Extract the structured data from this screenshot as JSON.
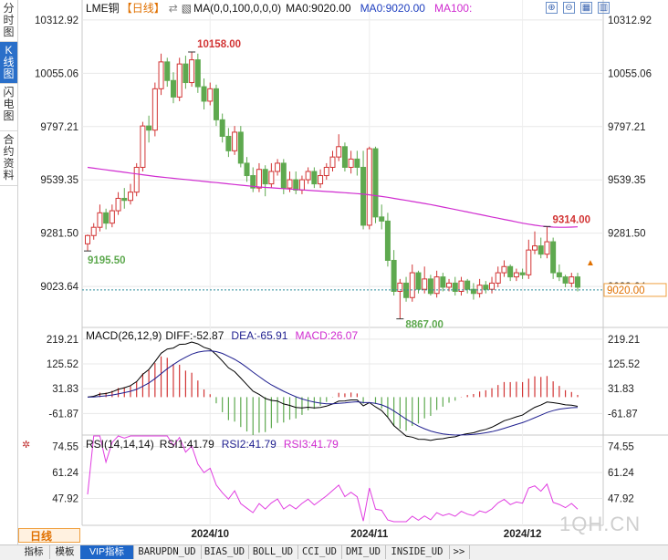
{
  "side_tabs": [
    "分时图",
    "K线图",
    "闪电图",
    "合约资料"
  ],
  "side_tab_active": 1,
  "header": {
    "symbol": "LME铜",
    "period": "【日线】",
    "ma_indicator": "MA(0,0,100,0,0,0)",
    "ma_label": "MA0:9020.00",
    "ma0_label": "MA0:9020.00",
    "ma100_label": "MA100:"
  },
  "macd_header": {
    "name": "MACD(26,12,9)",
    "diff": "DIFF:-52.87",
    "dea": "DEA:-65.91",
    "macd": "MACD:26.07"
  },
  "rsi_header": {
    "name": "RSI(14,14,14)",
    "rsi1": "RSI1:41.79",
    "rsi2": "RSI2:41.79",
    "rsi3": "RSI3:41.79"
  },
  "colors": {
    "up": "#d23434",
    "down": "#5ea94f",
    "ma": "#d02cd0",
    "diff": "#000000",
    "dea": "#1f1f8f",
    "rsi": "#e03ce0",
    "price_line": "#2a8a9a"
  },
  "period_label": "日线",
  "bottom_tabs": [
    "指标",
    "模板",
    "VIP指标",
    "BARUPDN_UD",
    "BIAS_UD",
    "BOLL_UD",
    "CCI_UD",
    "DMI_UD",
    "INSIDE_UD",
    ">>"
  ],
  "bottom_tab_active": 2,
  "watermark": "1QH.CN",
  "chart_data": {
    "type": "candlestick",
    "main": {
      "y_ticks": [
        "10312.92",
        "10055.06",
        "9797.21",
        "9539.35",
        "9281.50",
        "9023.64"
      ],
      "ylim": [
        8830,
        10330
      ],
      "current_price": "9020.00",
      "high_label": "10158.00",
      "low_label": "8867.00",
      "left_label": "9195.50",
      "recent_high_label": "9314.00"
    },
    "x_labels": [
      "2024/10",
      "2024/11",
      "2024/12"
    ],
    "candles": [
      [
        9230,
        9270,
        9195.5,
        9275
      ],
      [
        9270,
        9310,
        9250,
        9330
      ],
      [
        9310,
        9380,
        9290,
        9420
      ],
      [
        9380,
        9330,
        9300,
        9400
      ],
      [
        9330,
        9390,
        9310,
        9420
      ],
      [
        9390,
        9450,
        9370,
        9480
      ],
      [
        9450,
        9440,
        9400,
        9500
      ],
      [
        9440,
        9480,
        9420,
        9520
      ],
      [
        9480,
        9600,
        9460,
        9620
      ],
      [
        9600,
        9800,
        9580,
        9820
      ],
      [
        9800,
        9780,
        9720,
        9850
      ],
      [
        9780,
        9980,
        9750,
        10010
      ],
      [
        9980,
        10110,
        9950,
        10150
      ],
      [
        10110,
        10020,
        9990,
        10130
      ],
      [
        10020,
        9940,
        9910,
        10060
      ],
      [
        9940,
        10100,
        9920,
        10130
      ],
      [
        10100,
        10010,
        9980,
        10140
      ],
      [
        10010,
        10120,
        9990,
        10158
      ],
      [
        10120,
        9990,
        9960,
        10150
      ],
      [
        9990,
        9920,
        9880,
        10030
      ],
      [
        9920,
        9980,
        9900,
        10010
      ],
      [
        9980,
        9830,
        9800,
        10000
      ],
      [
        9830,
        9750,
        9720,
        9860
      ],
      [
        9750,
        9680,
        9650,
        9790
      ],
      [
        9680,
        9770,
        9660,
        9800
      ],
      [
        9770,
        9620,
        9600,
        9800
      ],
      [
        9620,
        9560,
        9530,
        9650
      ],
      [
        9560,
        9500,
        9480,
        9600
      ],
      [
        9500,
        9590,
        9480,
        9620
      ],
      [
        9590,
        9520,
        9460,
        9610
      ],
      [
        9520,
        9580,
        9500,
        9620
      ],
      [
        9580,
        9620,
        9560,
        9640
      ],
      [
        9620,
        9500,
        9470,
        9640
      ],
      [
        9500,
        9540,
        9480,
        9580
      ],
      [
        9540,
        9490,
        9470,
        9580
      ],
      [
        9490,
        9540,
        9470,
        9560
      ],
      [
        9540,
        9580,
        9520,
        9600
      ],
      [
        9580,
        9520,
        9500,
        9600
      ],
      [
        9520,
        9560,
        9500,
        9590
      ],
      [
        9560,
        9600,
        9540,
        9620
      ],
      [
        9600,
        9650,
        9580,
        9680
      ],
      [
        9650,
        9700,
        9630,
        9760
      ],
      [
        9700,
        9600,
        9580,
        9720
      ],
      [
        9600,
        9640,
        9570,
        9680
      ],
      [
        9640,
        9600,
        9560,
        9680
      ],
      [
        9600,
        9320,
        9300,
        9680
      ],
      [
        9320,
        9690,
        9300,
        9700
      ],
      [
        9690,
        9360,
        9330,
        9700
      ],
      [
        9360,
        9340,
        9300,
        9420
      ],
      [
        9340,
        9150,
        9120,
        9380
      ],
      [
        9150,
        9000,
        8980,
        9200
      ],
      [
        9000,
        9040,
        8867,
        9060
      ],
      [
        9040,
        8970,
        8950,
        9070
      ],
      [
        8970,
        9090,
        8950,
        9130
      ],
      [
        9090,
        9010,
        8990,
        9100
      ],
      [
        9010,
        9060,
        8990,
        9120
      ],
      [
        9060,
        8990,
        8980,
        9080
      ],
      [
        8990,
        9070,
        8970,
        9100
      ],
      [
        9070,
        9020,
        9000,
        9090
      ],
      [
        9020,
        9040,
        9000,
        9060
      ],
      [
        9040,
        9000,
        8980,
        9070
      ],
      [
        9000,
        9050,
        8980,
        9070
      ],
      [
        9050,
        9010,
        8990,
        9060
      ],
      [
        9010,
        8990,
        8960,
        9040
      ],
      [
        8990,
        9030,
        8970,
        9060
      ],
      [
        9030,
        9010,
        8990,
        9050
      ],
      [
        9010,
        9040,
        8990,
        9070
      ],
      [
        9040,
        9090,
        9020,
        9120
      ],
      [
        9090,
        9120,
        9070,
        9150
      ],
      [
        9120,
        9070,
        9050,
        9130
      ],
      [
        9070,
        9090,
        9050,
        9110
      ],
      [
        9090,
        9080,
        9060,
        9110
      ],
      [
        9080,
        9200,
        9060,
        9250
      ],
      [
        9200,
        9220,
        9180,
        9290
      ],
      [
        9220,
        9180,
        9160,
        9260
      ],
      [
        9180,
        9240,
        9160,
        9314
      ],
      [
        9240,
        9090,
        9060,
        9260
      ],
      [
        9090,
        9070,
        9050,
        9130
      ],
      [
        9070,
        9040,
        9020,
        9080
      ],
      [
        9040,
        9070,
        9020,
        9090
      ],
      [
        9070,
        9020,
        9000,
        9090
      ]
    ],
    "ma100_series": [
      9600,
      9596,
      9592,
      9588,
      9584,
      9580,
      9576,
      9572,
      9568,
      9564,
      9560,
      9556,
      9553,
      9550,
      9547,
      9544,
      9541,
      9538,
      9535,
      9532,
      9529,
      9526,
      9523,
      9520,
      9517,
      9514,
      9511,
      9508,
      9505,
      9503,
      9501,
      9499,
      9497,
      9495,
      9493,
      9491,
      9489,
      9487,
      9485,
      9483,
      9481,
      9479,
      9477,
      9475,
      9473,
      9470,
      9467,
      9463,
      9459,
      9455,
      9450,
      9445,
      9440,
      9435,
      9430,
      9425,
      9420,
      9414,
      9408,
      9402,
      9396,
      9390,
      9384,
      9378,
      9372,
      9366,
      9360,
      9354,
      9348,
      9342,
      9336,
      9330,
      9325,
      9320,
      9316,
      9313,
      9311,
      9310,
      9310,
      9311,
      9312
    ],
    "macd": {
      "y_ticks": [
        "219.21",
        "125.52",
        "31.83",
        "-61.87"
      ],
      "ylim": [
        -140,
        260
      ]
    },
    "rsi": {
      "y_ticks": [
        "74.55",
        "61.24",
        "47.92"
      ],
      "ylim": [
        36,
        80
      ]
    }
  }
}
